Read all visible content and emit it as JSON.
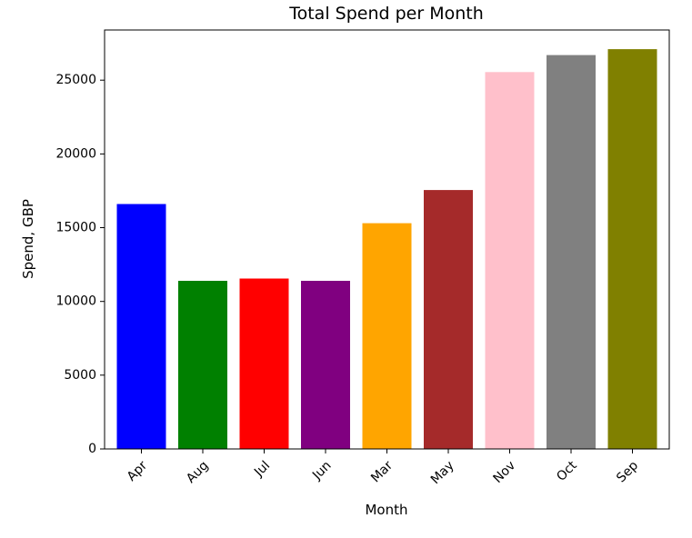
{
  "chart_data": {
    "type": "bar",
    "title": "Total Spend per Month",
    "xlabel": "Month",
    "ylabel": "Spend, GBP",
    "categories": [
      "Apr",
      "Aug",
      "Jul",
      "Jun",
      "Mar",
      "May",
      "Nov",
      "Oct",
      "Sep"
    ],
    "values": [
      16600,
      11400,
      11550,
      11400,
      15300,
      17550,
      25550,
      26700,
      27100
    ],
    "colors": [
      "#0000ff",
      "#008000",
      "#ff0000",
      "#800080",
      "#ffa500",
      "#a52a2a",
      "#ffc0cb",
      "#808080",
      "#808000"
    ],
    "ylim": [
      0,
      28400
    ],
    "yticks": [
      0,
      5000,
      10000,
      15000,
      20000,
      25000
    ],
    "grid": false,
    "legend": false
  }
}
